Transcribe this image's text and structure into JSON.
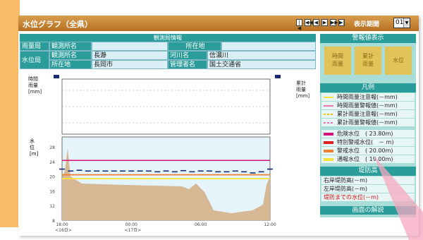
{
  "title": "水位グラフ（全県）",
  "controls": {
    "buttons": [
      "|◀",
      "◀◀",
      "◀",
      "▶",
      "▶▶",
      "▶|"
    ],
    "period_label": "表示期間",
    "period_value": "01"
  },
  "obs": {
    "header": "観測局情報",
    "rain_label": "雨量局",
    "level_label": "水位局",
    "obs_name_label": "観測所名",
    "location_label": "所在地",
    "obs_name_label2": "観測所名",
    "obs_name": "長瀞",
    "river_label": "河川名",
    "river": "信濃川",
    "location_label2": "所在地",
    "location": "長岡市",
    "manager_label": "管理者名",
    "manager": "国土交通省"
  },
  "chart": {
    "rain_ylabel_left": "時間\n雨量\n[mm]",
    "rain_ylabel_right": "累計\n雨量\n[mm]",
    "level_ylabel": "水\n位\n[m]",
    "rain_ticks": [
      "-",
      "-",
      "-"
    ],
    "level_ticks": [
      "28",
      "24",
      "20",
      "16",
      "12",
      "8"
    ],
    "x_ticks": [
      "18:00",
      "00:00",
      "06:00",
      "12:00"
    ],
    "x_sub": [
      "<16日>",
      "<17日>"
    ]
  },
  "chart_data": {
    "type": "line",
    "x": [
      0,
      1,
      2,
      3,
      4,
      5,
      6,
      7,
      8,
      9,
      10,
      11,
      12,
      13,
      14,
      15,
      16,
      17,
      18,
      19,
      20,
      21,
      22,
      23,
      24
    ],
    "series": [
      {
        "values": [
          21.5,
          21.0,
          21.2,
          21.0,
          21.0,
          21.0,
          21.0,
          21.0,
          21.0,
          21.0,
          21.0,
          20.8,
          21.0,
          20.8,
          21.1,
          20.8,
          21.0,
          21.0,
          20.8,
          20.8,
          21.0,
          20.8,
          20.5,
          20.8,
          21.5
        ]
      }
    ],
    "thresholds": {
      "flood_risk": 23.8,
      "evacuation": 20.0,
      "normal": 19.0
    },
    "ylim": [
      8,
      30
    ]
  },
  "legend": {
    "warn_head": "警報値表示",
    "warn_items": [
      "時間\n雨量",
      "累計\n雨量",
      "水位"
    ],
    "head": "凡例",
    "rain_items": [
      {
        "label": "時間雨量注意報(－mm)",
        "color": "#f5e33b"
      },
      {
        "label": "時間雨量警報値(－mm)",
        "color": "#e878b0"
      },
      {
        "label": "累計雨量注意報(－mm)",
        "color": "#f5c400"
      },
      {
        "label": "累計雨量警報値(－mm)",
        "color": "#e878b0"
      }
    ],
    "level_items": [
      {
        "label": "危険水位　( 23.80m)",
        "color": "#d8127c"
      },
      {
        "label": "特別警戒水位(　－ m)",
        "color": "#e02020"
      },
      {
        "label": "警戒水位　( 20.00m)",
        "color": "#f08030"
      },
      {
        "label": "通報水位　( 19.00m)",
        "color": "#f5e33b"
      }
    ],
    "bank_head": "堤防高",
    "bank_items": [
      "右岸堤防高(－m)",
      "左岸堤防高(－m)",
      "堤防までの水位(－m)"
    ],
    "usage": "画面の解説"
  }
}
